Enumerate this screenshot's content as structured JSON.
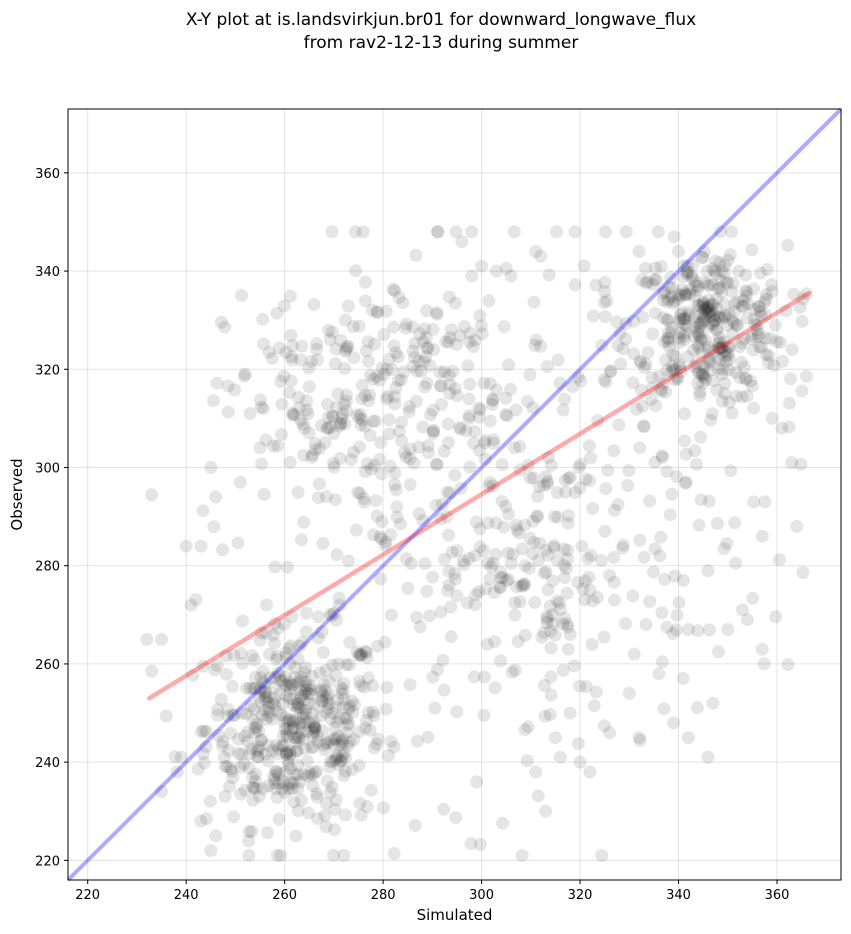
{
  "chart_data": {
    "type": "scatter",
    "title_line1": "X-Y plot at is.landsvirkjun.br01 for downward_longwave_flux",
    "title_line2": "from rav2-12-13 during summer",
    "xlabel": "Simulated",
    "ylabel": "Observed",
    "xlim": [
      216,
      373
    ],
    "ylim": [
      216,
      373
    ],
    "xticks": [
      220,
      240,
      260,
      280,
      300,
      320,
      340,
      360
    ],
    "yticks": [
      220,
      240,
      260,
      280,
      300,
      320,
      340,
      360
    ],
    "grid": true,
    "point_color": "#000000",
    "point_alpha": 0.1,
    "reference_line": {
      "name": "1:1 line",
      "color": "#0000ff",
      "x": [
        216,
        373
      ],
      "y": [
        216,
        373
      ]
    },
    "fit_line": {
      "name": "regression",
      "color": "#ff0000",
      "x": [
        232.5,
        366.5
      ],
      "y": [
        253,
        335.5
      ]
    },
    "clusters": [
      {
        "cx": 262,
        "cy": 247,
        "sx": 9,
        "sy": 10,
        "n": 420
      },
      {
        "cx": 346,
        "cy": 329,
        "sx": 8,
        "sy": 8,
        "n": 320
      },
      {
        "cx": 268,
        "cy": 312,
        "sx": 10,
        "sy": 12,
        "n": 150
      },
      {
        "cx": 290,
        "cy": 322,
        "sx": 9,
        "sy": 9,
        "n": 60
      },
      {
        "cx": 312,
        "cy": 278,
        "sx": 6,
        "sy": 12,
        "n": 90
      },
      {
        "cx": 300,
        "cy": 290,
        "sx": 22,
        "sy": 28,
        "n": 320
      },
      {
        "cx": 336,
        "cy": 300,
        "sx": 14,
        "sy": 22,
        "n": 80
      }
    ],
    "points": [
      [
        232,
        265
      ],
      [
        235,
        265
      ],
      [
        243,
        284
      ],
      [
        241,
        272
      ],
      [
        240,
        284
      ],
      [
        245,
        300
      ],
      [
        246,
        294
      ],
      [
        251,
        297
      ],
      [
        253,
        311
      ],
      [
        255,
        304
      ],
      [
        298,
        348
      ],
      [
        296,
        346
      ],
      [
        298,
        339
      ],
      [
        311,
        344
      ],
      [
        312,
        343
      ],
      [
        303,
        340
      ],
      [
        300,
        341
      ],
      [
        306,
        339
      ],
      [
        332,
        344
      ],
      [
        340,
        344
      ],
      [
        313,
        230
      ],
      [
        311,
        238
      ],
      [
        299,
        236
      ],
      [
        245,
        222
      ],
      [
        251,
        239
      ],
      [
        364,
        288
      ],
      [
        357,
        286
      ],
      [
        363,
        301
      ],
      [
        361,
        308
      ],
      [
        359,
        310
      ],
      [
        357,
        263
      ],
      [
        347,
        252
      ],
      [
        346,
        241
      ],
      [
        342,
        245
      ],
      [
        339,
        248
      ],
      [
        354,
        269
      ],
      [
        353,
        271
      ],
      [
        350,
        267
      ],
      [
        342,
        267
      ],
      [
        341,
        277
      ],
      [
        346,
        279
      ],
      [
        336,
        258
      ],
      [
        331,
        262
      ],
      [
        330,
        254
      ],
      [
        332,
        245
      ],
      [
        326,
        246
      ],
      [
        320,
        240
      ],
      [
        322,
        238
      ],
      [
        316,
        241
      ],
      [
        315,
        245
      ],
      [
        318,
        250
      ],
      [
        327,
        273
      ],
      [
        322,
        275
      ],
      [
        326,
        278
      ],
      [
        318,
        266
      ],
      [
        235,
        234
      ],
      [
        239,
        241
      ],
      [
        243,
        228
      ],
      [
        246,
        225
      ]
    ]
  }
}
